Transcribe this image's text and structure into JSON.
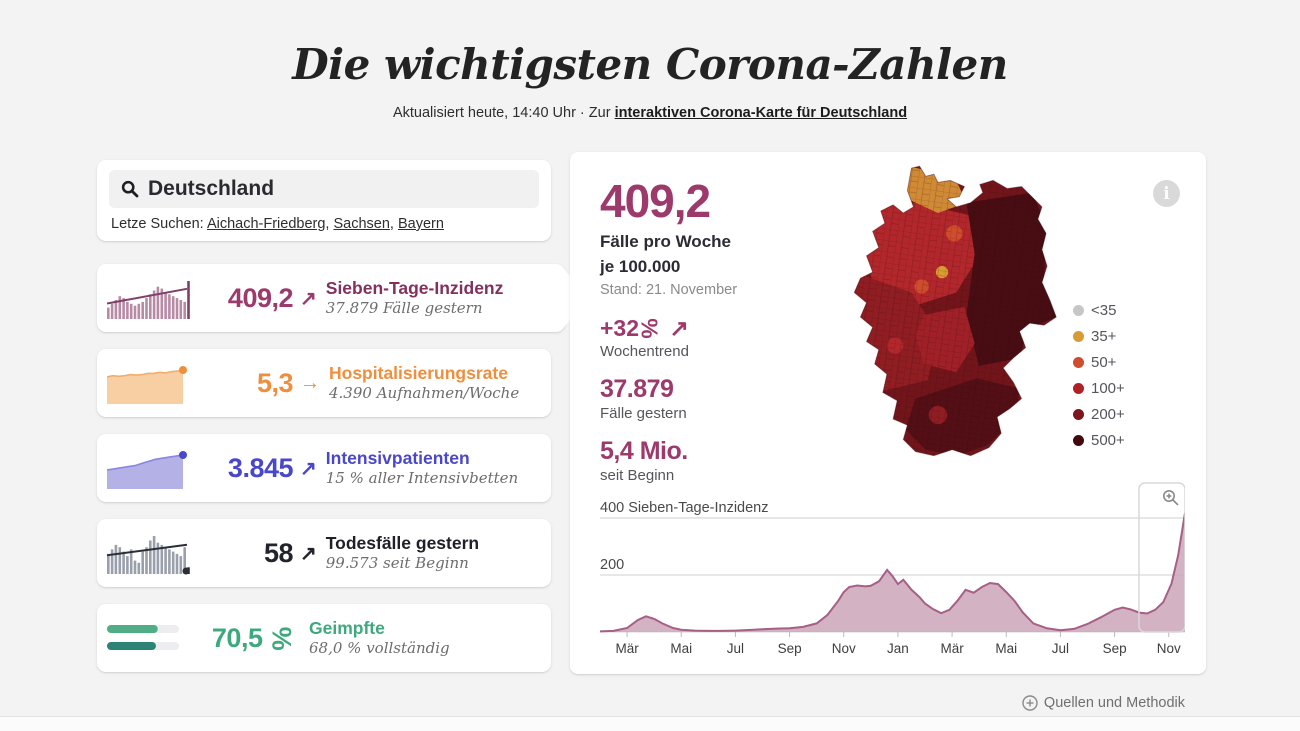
{
  "page": {
    "title": "Die wichtigsten Corona-Zahlen",
    "updated_prefix": "Aktualisiert heute, 14:40 Uhr · Zur ",
    "map_link": "interaktiven Corona-Karte für Deutschland"
  },
  "search": {
    "value": "Deutschland",
    "recent_label": "Letze Suchen: ",
    "recent": [
      "Aichach-Friedberg",
      "Sachsen",
      "Bayern"
    ],
    "sep": ", "
  },
  "cards": [
    {
      "value": "409,2",
      "arrow": "↗",
      "title": "Sieben-Tage-Inzidenz",
      "subtitle": "37.879 Fälle gestern",
      "value_color": "#9c3a6c",
      "title_color": "#84305c",
      "selected": true
    },
    {
      "value": "5,3",
      "arrow": "→",
      "title": "Hospitalisierungsrate",
      "subtitle": "4.390 Aufnahmen/Woche",
      "value_color": "#ef8f3e",
      "title_color": "#ef8f3e"
    },
    {
      "value": "3.845",
      "arrow": "↗",
      "title": "Intensivpatienten",
      "subtitle": "15 % aller Intensivbetten",
      "value_color": "#4a47cb",
      "title_color": "#4a47cb"
    },
    {
      "value": "58",
      "arrow": "↗",
      "title": "Todesfälle gestern",
      "subtitle": "99.573 seit Beginn",
      "value_color": "#23242b",
      "title_color": "#1f2028"
    },
    {
      "value": "70,5",
      "percent_symbol": "%",
      "title": "Geimpfte",
      "subtitle": "68,0 % vollständig",
      "value_color": "#3fa97e",
      "title_color": "#3fa97e"
    }
  ],
  "detail": {
    "big_value": "409,2",
    "big_label_1": "Fälle pro Woche",
    "big_label_2": "je 100.000",
    "stand": "Stand: 21. November",
    "trend_value": "+32",
    "percent_symbol": "%",
    "trend_arrow": "↗",
    "trend_label": "Wochentrend",
    "yesterday_value": "37.879",
    "yesterday_label": "Fälle gestern",
    "total_value": "5,4 Mio.",
    "total_label": "seit Beginn",
    "info_icon": "i"
  },
  "map_legend": {
    "items": [
      {
        "label": "<35",
        "color": "#c6c6c6"
      },
      {
        "label": "35+",
        "color": "#d99b33"
      },
      {
        "label": "50+",
        "color": "#cf4c2c"
      },
      {
        "label": "100+",
        "color": "#b02025"
      },
      {
        "label": "200+",
        "color": "#7a161c"
      },
      {
        "label": "500+",
        "color": "#410a0e"
      }
    ]
  },
  "chart_data": {
    "type": "area",
    "title": "Sieben-Tage-Inzidenz",
    "xlabel": "",
    "ylabel": "Sieben-Tage-Inzidenz",
    "ylim": [
      0,
      440
    ],
    "xlim": [
      0,
      21.6
    ],
    "fill": "#cda7bb",
    "stroke": "#a75f86",
    "gridlines": [
      {
        "y": 400,
        "label": "400 Sieben-Tage-Inzidenz"
      },
      {
        "y": 200,
        "label": "200"
      }
    ],
    "ticks": [
      {
        "x": 1,
        "label": "Mär"
      },
      {
        "x": 3,
        "label": "Mai"
      },
      {
        "x": 5,
        "label": "Jul"
      },
      {
        "x": 7,
        "label": "Sep"
      },
      {
        "x": 9,
        "label": "Nov"
      },
      {
        "x": 11,
        "label": "Jan"
      },
      {
        "x": 13,
        "label": "Mär"
      },
      {
        "x": 15,
        "label": "Mai"
      },
      {
        "x": 17,
        "label": "Jul"
      },
      {
        "x": 19,
        "label": "Sep"
      },
      {
        "x": 21,
        "label": "Nov"
      }
    ],
    "points": [
      [
        0,
        2
      ],
      [
        0.5,
        4
      ],
      [
        1,
        14
      ],
      [
        1.4,
        42
      ],
      [
        1.7,
        55
      ],
      [
        2,
        46
      ],
      [
        2.3,
        30
      ],
      [
        2.7,
        14
      ],
      [
        3,
        8
      ],
      [
        3.5,
        5
      ],
      [
        4,
        4
      ],
      [
        4.5,
        4
      ],
      [
        5,
        5
      ],
      [
        5.5,
        7
      ],
      [
        6,
        10
      ],
      [
        6.5,
        12
      ],
      [
        7,
        13
      ],
      [
        7.5,
        18
      ],
      [
        8,
        30
      ],
      [
        8.4,
        60
      ],
      [
        8.8,
        110
      ],
      [
        9,
        140
      ],
      [
        9.2,
        158
      ],
      [
        9.5,
        163
      ],
      [
        9.8,
        160
      ],
      [
        10,
        162
      ],
      [
        10.3,
        178
      ],
      [
        10.6,
        218
      ],
      [
        10.8,
        196
      ],
      [
        11,
        168
      ],
      [
        11.2,
        183
      ],
      [
        11.5,
        148
      ],
      [
        11.8,
        122
      ],
      [
        12,
        100
      ],
      [
        12.3,
        80
      ],
      [
        12.6,
        66
      ],
      [
        12.9,
        78
      ],
      [
        13.2,
        110
      ],
      [
        13.5,
        148
      ],
      [
        13.8,
        138
      ],
      [
        14.1,
        158
      ],
      [
        14.4,
        172
      ],
      [
        14.7,
        168
      ],
      [
        15,
        140
      ],
      [
        15.3,
        110
      ],
      [
        15.6,
        70
      ],
      [
        16,
        30
      ],
      [
        16.5,
        13
      ],
      [
        17,
        6
      ],
      [
        17.5,
        11
      ],
      [
        18,
        28
      ],
      [
        18.5,
        52
      ],
      [
        19,
        78
      ],
      [
        19.3,
        86
      ],
      [
        19.6,
        79
      ],
      [
        19.9,
        68
      ],
      [
        20.2,
        65
      ],
      [
        20.5,
        78
      ],
      [
        20.8,
        105
      ],
      [
        21.1,
        170
      ],
      [
        21.35,
        270
      ],
      [
        21.6,
        418
      ]
    ],
    "zoom_window": [
      19.9,
      21.6
    ]
  },
  "sparklines": {
    "inzidenz": {
      "type": "bars",
      "color": "#b88ba5",
      "dark": "#7e3f68",
      "values": [
        6,
        8,
        10,
        12,
        11,
        9,
        8,
        7,
        8,
        9,
        11,
        13,
        15,
        17,
        16,
        14,
        13,
        12,
        11,
        10,
        9,
        20
      ],
      "trend": [
        0.62,
        0.3
      ]
    },
    "hospital": {
      "type": "area",
      "fill": "#f8cfa2",
      "stroke": "#efae6e",
      "dot": "#ef8f3e",
      "values": [
        22,
        23,
        22.5,
        23,
        24,
        23.5,
        24,
        25,
        25,
        26,
        25.5,
        26.5,
        27,
        28
      ]
    },
    "icu": {
      "type": "area",
      "fill": "#b4b1e6",
      "stroke": "#8a86dd",
      "dot": "#4a47cb",
      "values": [
        16,
        17,
        18,
        19,
        20,
        22,
        24,
        26,
        27,
        28,
        29,
        30
      ]
    },
    "deaths": {
      "type": "bars",
      "color": "#9aa0ab",
      "dark": "#2c2e36",
      "values": [
        9,
        11,
        13,
        12,
        10,
        8,
        11,
        6,
        5,
        10,
        12,
        15,
        17,
        14,
        13,
        12,
        11,
        10,
        9,
        8,
        12,
        3
      ],
      "trend": [
        0.55,
        0.32
      ],
      "end_dot": true
    },
    "vaccinated": {
      "type": "progress",
      "track": "#ededef",
      "bars": [
        {
          "pct": 70.5,
          "color": "#4fae86"
        },
        {
          "pct": 68.0,
          "color": "#2d8374"
        }
      ]
    }
  },
  "footer": {
    "sources_link": "Quellen und Methodik"
  }
}
